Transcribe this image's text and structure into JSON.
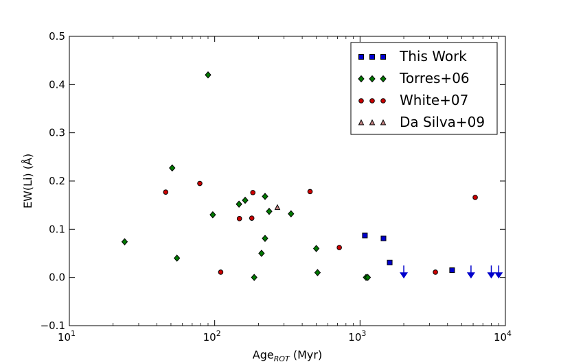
{
  "chart_data": {
    "type": "scatter",
    "xscale": "log",
    "xlim": [
      10,
      10000
    ],
    "ylim": [
      -0.1,
      0.5
    ],
    "xlabel": "Age",
    "xlabel_sub": "ROT",
    "xlabel_unit": " (Myr)",
    "ylabel": "EW(Li) (Å)",
    "grid": false,
    "legend_position": "top-right",
    "x_ticks": [
      {
        "value": 10,
        "base": "10",
        "exp": "1"
      },
      {
        "value": 100,
        "base": "10",
        "exp": "2"
      },
      {
        "value": 1000,
        "base": "10",
        "exp": "3"
      },
      {
        "value": 10000,
        "base": "10",
        "exp": "4"
      }
    ],
    "y_ticks": [
      {
        "value": -0.1,
        "label": "−0.1"
      },
      {
        "value": 0.0,
        "label": "0.0"
      },
      {
        "value": 0.1,
        "label": "0.1"
      },
      {
        "value": 0.2,
        "label": "0.2"
      },
      {
        "value": 0.3,
        "label": "0.3"
      },
      {
        "value": 0.4,
        "label": "0.4"
      },
      {
        "value": 0.5,
        "label": "0.5"
      }
    ],
    "series": [
      {
        "name": "This Work",
        "marker": "square",
        "color": "#0000cc",
        "points": [
          [
            1080,
            0.087
          ],
          [
            1450,
            0.081
          ],
          [
            1600,
            0.031
          ],
          [
            4300,
            0.015
          ]
        ],
        "upper_limits": [
          [
            2000,
            0.002
          ],
          [
            5800,
            0.002
          ],
          [
            8000,
            0.002
          ],
          [
            9000,
            0.002
          ]
        ]
      },
      {
        "name": "Torres+06",
        "marker": "diamond",
        "color": "#007a00",
        "points": [
          [
            24,
            0.074
          ],
          [
            51,
            0.227
          ],
          [
            55,
            0.04
          ],
          [
            90,
            0.42
          ],
          [
            97,
            0.13
          ],
          [
            147,
            0.152
          ],
          [
            162,
            0.16
          ],
          [
            187,
            0.0
          ],
          [
            210,
            0.05
          ],
          [
            222,
            0.168
          ],
          [
            222,
            0.081
          ],
          [
            237,
            0.137
          ],
          [
            335,
            0.132
          ],
          [
            500,
            0.06
          ],
          [
            510,
            0.01
          ],
          [
            1100,
            0.0
          ],
          [
            1130,
            0.0
          ]
        ]
      },
      {
        "name": "White+07",
        "marker": "circle",
        "color": "#cc0000",
        "points": [
          [
            46,
            0.177
          ],
          [
            79,
            0.195
          ],
          [
            110,
            0.011
          ],
          [
            148,
            0.122
          ],
          [
            180,
            0.123
          ],
          [
            183,
            0.176
          ],
          [
            453,
            0.178
          ],
          [
            720,
            0.062
          ],
          [
            3300,
            0.011
          ],
          [
            6200,
            0.166
          ]
        ]
      },
      {
        "name": "Da Silva+09",
        "marker": "triangle",
        "color": "#c08080",
        "points": [
          [
            270,
            0.145
          ]
        ]
      }
    ]
  }
}
